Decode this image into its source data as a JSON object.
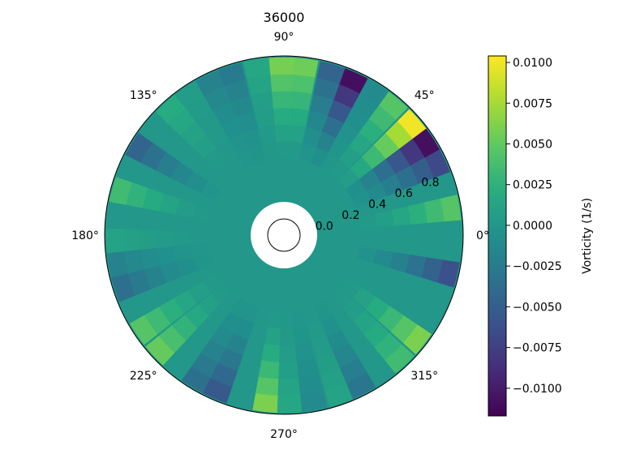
{
  "chart_data": {
    "type": "heatmap",
    "projection": "polar",
    "title": "36000",
    "theta_tick_labels": [
      "0°",
      "45°",
      "90°",
      "135°",
      "180°",
      "225°",
      "270°",
      "315°"
    ],
    "theta_tick_degrees": [
      0,
      45,
      90,
      135,
      180,
      225,
      270,
      315
    ],
    "r_tick_labels": [
      "0.0",
      "0.2",
      "0.4",
      "0.6",
      "0.8"
    ],
    "r_tick_values": [
      0.0,
      0.2,
      0.4,
      0.6,
      0.8
    ],
    "r_range": [
      0.0,
      1.0
    ],
    "inner_blank_radius": 0.2,
    "grid": false,
    "colormap": "viridis",
    "colorbar": {
      "label": "Vorticity (1/s)",
      "vmin": -0.0117,
      "vmax": 0.0104,
      "tick_values": [
        0.01,
        0.0075,
        0.005,
        0.0025,
        0.0,
        -0.0025,
        -0.005,
        -0.0075,
        -0.01
      ],
      "tick_labels": [
        "0.0100",
        "0.0075",
        "0.0050",
        "0.0025",
        "0.0000",
        "−0.0025",
        "−0.0050",
        "−0.0075",
        "−0.0100"
      ],
      "placement": "right"
    },
    "sectors": [
      {
        "theta_deg": 0,
        "value": 0.0
      },
      {
        "theta_deg": 9,
        "value": 0.0045
      },
      {
        "theta_deg": 17,
        "value": 0.0
      },
      {
        "theta_deg": 25,
        "value": -0.0068
      },
      {
        "theta_deg": 33,
        "value": -0.0108
      },
      {
        "theta_deg": 41,
        "value": 0.01
      },
      {
        "theta_deg": 50,
        "value": 0.0045
      },
      {
        "theta_deg": 58,
        "value": -0.0012
      },
      {
        "theta_deg": 66,
        "value": -0.0108
      },
      {
        "theta_deg": 74,
        "value": -0.0045
      },
      {
        "theta_deg": 83,
        "value": 0.0055
      },
      {
        "theta_deg": 91,
        "value": 0.0058
      },
      {
        "theta_deg": 99,
        "value": 0.0015
      },
      {
        "theta_deg": 108,
        "value": -0.0025
      },
      {
        "theta_deg": 116,
        "value": -0.0018
      },
      {
        "theta_deg": 124,
        "value": 0.0005
      },
      {
        "theta_deg": 132,
        "value": 0.002
      },
      {
        "theta_deg": 140,
        "value": 0.0
      },
      {
        "theta_deg": 149,
        "value": -0.0045
      },
      {
        "theta_deg": 157,
        "value": 0.0
      },
      {
        "theta_deg": 165,
        "value": 0.0035
      },
      {
        "theta_deg": 173,
        "value": 0.0
      },
      {
        "theta_deg": 182,
        "value": 0.0012
      },
      {
        "theta_deg": 190,
        "value": -0.0018
      },
      {
        "theta_deg": 198,
        "value": -0.0035
      },
      {
        "theta_deg": 206,
        "value": 0.0
      },
      {
        "theta_deg": 214,
        "value": 0.0045
      },
      {
        "theta_deg": 223,
        "value": 0.0052
      },
      {
        "theta_deg": 231,
        "value": 0.0
      },
      {
        "theta_deg": 239,
        "value": -0.0035
      },
      {
        "theta_deg": 247,
        "value": -0.0055
      },
      {
        "theta_deg": 256,
        "value": 0.0
      },
      {
        "theta_deg": 264,
        "value": 0.006
      },
      {
        "theta_deg": 272,
        "value": 0.0015
      },
      {
        "theta_deg": 280,
        "value": -0.0012
      },
      {
        "theta_deg": 289,
        "value": 0.0012
      },
      {
        "theta_deg": 297,
        "value": -0.003
      },
      {
        "theta_deg": 305,
        "value": 0.0
      },
      {
        "theta_deg": 313,
        "value": 0.0035
      },
      {
        "theta_deg": 322,
        "value": 0.006
      },
      {
        "theta_deg": 330,
        "value": 0.0
      },
      {
        "theta_deg": 338,
        "value": 0.0
      },
      {
        "theta_deg": 347,
        "value": -0.0062
      },
      {
        "theta_deg": 355,
        "value": 0.0
      }
    ],
    "sector_width_deg": 8.2
  }
}
